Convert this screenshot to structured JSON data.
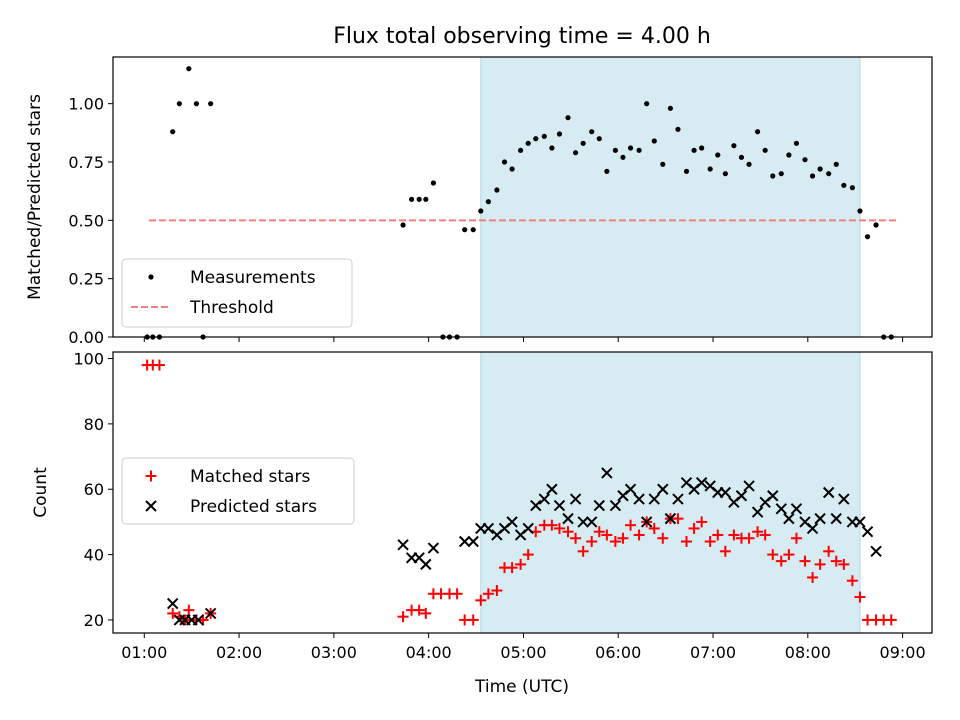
{
  "figure": {
    "title": "Flux total observing time = 4.00 h",
    "xlabel": "Time (UTC)"
  },
  "chart_data": [
    {
      "type": "scatter",
      "panel": "top",
      "ylabel": "Matched/Predicted stars",
      "x_unit": "hours UTC",
      "xlim": [
        0.67,
        9.31
      ],
      "ylim": [
        0,
        1.2
      ],
      "yticks": [
        0.0,
        0.25,
        0.5,
        0.75,
        1.0
      ],
      "ytick_labels": [
        "0.00",
        "0.25",
        "0.50",
        "0.75",
        "1.00"
      ],
      "shaded_interval": [
        4.55,
        8.55
      ],
      "shade_color": "#add8e6",
      "legend_placement": "lower-left",
      "legend": [
        {
          "label": "Measurements",
          "style": "dot",
          "color": "#000000"
        },
        {
          "label": "Threshold",
          "style": "dashed",
          "color": "#f08080"
        }
      ],
      "threshold": {
        "value": 0.5,
        "x_range": [
          1.05,
          8.95
        ],
        "color": "#f08080"
      },
      "series": [
        {
          "name": "Measurements",
          "color": "#000000",
          "points": [
            [
              1.03,
              0
            ],
            [
              1.09,
              0
            ],
            [
              1.16,
              0
            ],
            [
              1.3,
              0.88
            ],
            [
              1.37,
              1.0
            ],
            [
              1.47,
              1.15
            ],
            [
              1.55,
              1.0
            ],
            [
              1.62,
              0
            ],
            [
              1.7,
              1.0
            ],
            [
              3.73,
              0.48
            ],
            [
              3.82,
              0.59
            ],
            [
              3.9,
              0.59
            ],
            [
              3.97,
              0.59
            ],
            [
              4.05,
              0.66
            ],
            [
              4.15,
              0
            ],
            [
              4.22,
              0
            ],
            [
              4.3,
              0
            ],
            [
              4.38,
              0.46
            ],
            [
              4.47,
              0.46
            ],
            [
              4.55,
              0.54
            ],
            [
              4.63,
              0.58
            ],
            [
              4.72,
              0.63
            ],
            [
              4.8,
              0.75
            ],
            [
              4.88,
              0.72
            ],
            [
              4.97,
              0.8
            ],
            [
              5.05,
              0.83
            ],
            [
              5.13,
              0.85
            ],
            [
              5.22,
              0.86
            ],
            [
              5.3,
              0.81
            ],
            [
              5.38,
              0.87
            ],
            [
              5.47,
              0.94
            ],
            [
              5.55,
              0.79
            ],
            [
              5.63,
              0.83
            ],
            [
              5.72,
              0.88
            ],
            [
              5.8,
              0.85
            ],
            [
              5.88,
              0.71
            ],
            [
              5.97,
              0.8
            ],
            [
              6.05,
              0.77
            ],
            [
              6.13,
              0.81
            ],
            [
              6.22,
              0.8
            ],
            [
              6.3,
              1.0
            ],
            [
              6.38,
              0.84
            ],
            [
              6.47,
              0.74
            ],
            [
              6.55,
              0.98
            ],
            [
              6.63,
              0.89
            ],
            [
              6.72,
              0.71
            ],
            [
              6.8,
              0.8
            ],
            [
              6.88,
              0.81
            ],
            [
              6.97,
              0.72
            ],
            [
              7.05,
              0.78
            ],
            [
              7.13,
              0.7
            ],
            [
              7.22,
              0.82
            ],
            [
              7.3,
              0.77
            ],
            [
              7.38,
              0.74
            ],
            [
              7.47,
              0.88
            ],
            [
              7.55,
              0.8
            ],
            [
              7.63,
              0.69
            ],
            [
              7.72,
              0.7
            ],
            [
              7.8,
              0.78
            ],
            [
              7.88,
              0.83
            ],
            [
              7.97,
              0.76
            ],
            [
              8.05,
              0.69
            ],
            [
              8.13,
              0.72
            ],
            [
              8.22,
              0.7
            ],
            [
              8.3,
              0.74
            ],
            [
              8.38,
              0.65
            ],
            [
              8.47,
              0.64
            ],
            [
              8.55,
              0.54
            ],
            [
              8.63,
              0.43
            ],
            [
              8.72,
              0.48
            ],
            [
              8.8,
              0
            ],
            [
              8.88,
              0
            ]
          ]
        }
      ]
    },
    {
      "type": "scatter",
      "panel": "bottom",
      "ylabel": "Count",
      "x_unit": "hours UTC",
      "xlim": [
        0.67,
        9.31
      ],
      "ylim": [
        16,
        102
      ],
      "yticks": [
        20,
        40,
        60,
        80,
        100
      ],
      "ytick_labels": [
        "20",
        "40",
        "60",
        "80",
        "100"
      ],
      "xticks": [
        1,
        2,
        3,
        4,
        5,
        6,
        7,
        8,
        9
      ],
      "xtick_labels": [
        "01:00",
        "02:00",
        "03:00",
        "04:00",
        "05:00",
        "06:00",
        "07:00",
        "08:00",
        "09:00"
      ],
      "shaded_interval": [
        4.55,
        8.55
      ],
      "shade_color": "#add8e6",
      "legend_placement": "center-left",
      "legend": [
        {
          "label": "Matched stars",
          "style": "plus",
          "color": "#ff0000"
        },
        {
          "label": "Predicted stars",
          "style": "x",
          "color": "#000000"
        }
      ],
      "series": [
        {
          "name": "Matched stars",
          "marker": "plus",
          "color": "#ff0000",
          "points": [
            [
              1.03,
              98
            ],
            [
              1.09,
              98
            ],
            [
              1.16,
              98
            ],
            [
              1.3,
              22
            ],
            [
              1.37,
              21
            ],
            [
              1.43,
              20
            ],
            [
              1.47,
              23
            ],
            [
              1.55,
              20
            ],
            [
              1.62,
              20
            ],
            [
              1.7,
              22
            ],
            [
              3.73,
              21
            ],
            [
              3.82,
              23
            ],
            [
              3.9,
              23
            ],
            [
              3.97,
              22
            ],
            [
              4.05,
              28
            ],
            [
              4.13,
              28
            ],
            [
              4.22,
              28
            ],
            [
              4.3,
              28
            ],
            [
              4.38,
              20
            ],
            [
              4.47,
              20
            ],
            [
              4.55,
              26
            ],
            [
              4.63,
              28
            ],
            [
              4.72,
              29
            ],
            [
              4.8,
              36
            ],
            [
              4.88,
              36
            ],
            [
              4.97,
              37
            ],
            [
              5.05,
              40
            ],
            [
              5.13,
              47
            ],
            [
              5.22,
              49
            ],
            [
              5.3,
              49
            ],
            [
              5.38,
              48
            ],
            [
              5.47,
              47
            ],
            [
              5.55,
              45
            ],
            [
              5.63,
              41
            ],
            [
              5.72,
              44
            ],
            [
              5.8,
              47
            ],
            [
              5.88,
              46
            ],
            [
              5.97,
              44
            ],
            [
              6.05,
              45
            ],
            [
              6.13,
              49
            ],
            [
              6.22,
              46
            ],
            [
              6.3,
              50
            ],
            [
              6.38,
              48
            ],
            [
              6.47,
              45
            ],
            [
              6.55,
              51
            ],
            [
              6.63,
              51
            ],
            [
              6.72,
              44
            ],
            [
              6.8,
              48
            ],
            [
              6.88,
              50
            ],
            [
              6.97,
              44
            ],
            [
              7.05,
              46
            ],
            [
              7.13,
              41
            ],
            [
              7.22,
              46
            ],
            [
              7.3,
              45
            ],
            [
              7.38,
              45
            ],
            [
              7.47,
              47
            ],
            [
              7.55,
              46
            ],
            [
              7.63,
              40
            ],
            [
              7.72,
              38
            ],
            [
              7.8,
              40
            ],
            [
              7.88,
              45
            ],
            [
              7.97,
              38
            ],
            [
              8.05,
              33
            ],
            [
              8.13,
              37
            ],
            [
              8.22,
              41
            ],
            [
              8.3,
              38
            ],
            [
              8.38,
              37
            ],
            [
              8.47,
              32
            ],
            [
              8.55,
              27
            ],
            [
              8.63,
              20
            ],
            [
              8.72,
              20
            ],
            [
              8.8,
              20
            ],
            [
              8.88,
              20
            ]
          ]
        },
        {
          "name": "Predicted stars",
          "marker": "x",
          "color": "#000000",
          "points": [
            [
              1.3,
              25
            ],
            [
              1.37,
              20
            ],
            [
              1.43,
              20
            ],
            [
              1.5,
              20
            ],
            [
              1.57,
              20
            ],
            [
              1.7,
              22
            ],
            [
              3.73,
              43
            ],
            [
              3.82,
              39
            ],
            [
              3.9,
              39
            ],
            [
              3.97,
              37
            ],
            [
              4.05,
              42
            ],
            [
              4.38,
              44
            ],
            [
              4.47,
              44
            ],
            [
              4.55,
              48
            ],
            [
              4.63,
              48
            ],
            [
              4.72,
              46
            ],
            [
              4.8,
              48
            ],
            [
              4.88,
              50
            ],
            [
              4.97,
              46
            ],
            [
              5.05,
              48
            ],
            [
              5.13,
              55
            ],
            [
              5.22,
              57
            ],
            [
              5.3,
              60
            ],
            [
              5.38,
              55
            ],
            [
              5.47,
              51
            ],
            [
              5.55,
              57
            ],
            [
              5.63,
              50
            ],
            [
              5.72,
              50
            ],
            [
              5.8,
              55
            ],
            [
              5.88,
              65
            ],
            [
              5.97,
              55
            ],
            [
              6.05,
              58
            ],
            [
              6.13,
              60
            ],
            [
              6.22,
              57
            ],
            [
              6.3,
              50
            ],
            [
              6.38,
              57
            ],
            [
              6.47,
              60
            ],
            [
              6.55,
              51
            ],
            [
              6.63,
              57
            ],
            [
              6.72,
              62
            ],
            [
              6.8,
              60
            ],
            [
              6.88,
              62
            ],
            [
              6.97,
              61
            ],
            [
              7.05,
              59
            ],
            [
              7.13,
              59
            ],
            [
              7.22,
              56
            ],
            [
              7.3,
              58
            ],
            [
              7.38,
              61
            ],
            [
              7.47,
              53
            ],
            [
              7.55,
              56
            ],
            [
              7.63,
              58
            ],
            [
              7.72,
              54
            ],
            [
              7.8,
              51
            ],
            [
              7.88,
              54
            ],
            [
              7.97,
              50
            ],
            [
              8.05,
              48
            ],
            [
              8.13,
              51
            ],
            [
              8.22,
              59
            ],
            [
              8.3,
              51
            ],
            [
              8.38,
              57
            ],
            [
              8.47,
              50
            ],
            [
              8.55,
              50
            ],
            [
              8.63,
              47
            ],
            [
              8.72,
              41
            ]
          ]
        }
      ]
    }
  ]
}
